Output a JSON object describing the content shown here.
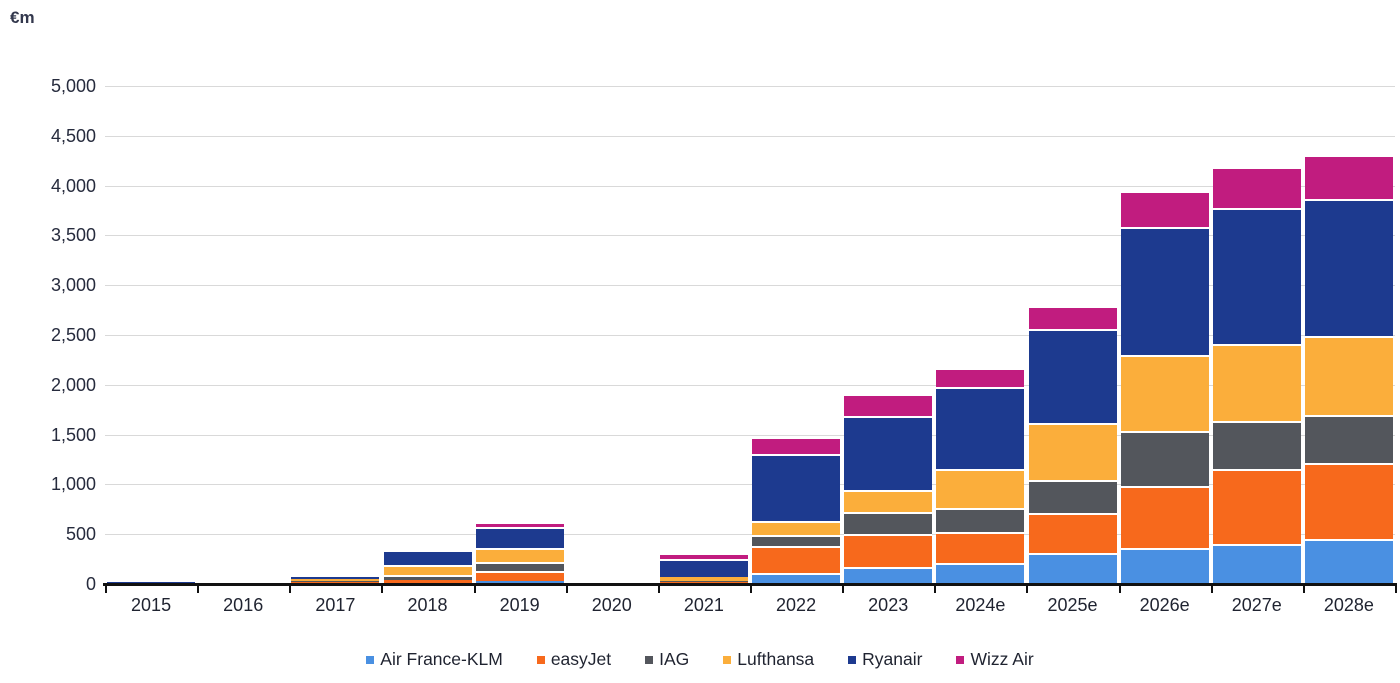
{
  "chart_data": {
    "type": "bar",
    "stacked": true,
    "title": "€m",
    "categories": [
      "2015",
      "2016",
      "2017",
      "2018",
      "2019",
      "2020",
      "2021",
      "2022",
      "2023",
      "2024e",
      "2025e",
      "2026e",
      "2027e",
      "2028e"
    ],
    "series": [
      {
        "name": "Air France-KLM",
        "color": "#4a90e2",
        "values": [
          5,
          0,
          10,
          0,
          30,
          0,
          15,
          110,
          175,
          215,
          310,
          360,
          400,
          450
        ]
      },
      {
        "name": "easyJet",
        "color": "#f7691c",
        "values": [
          5,
          0,
          15,
          40,
          105,
          0,
          10,
          275,
          330,
          305,
          405,
          620,
          750,
          770
        ]
      },
      {
        "name": "IAG",
        "color": "#53565c",
        "values": [
          0,
          0,
          10,
          55,
          85,
          0,
          10,
          110,
          220,
          245,
          325,
          555,
          490,
          480
        ]
      },
      {
        "name": "Lufthansa",
        "color": "#fbae3b",
        "values": [
          5,
          0,
          15,
          95,
          140,
          0,
          35,
          135,
          220,
          390,
          580,
          765,
          775,
          790
        ]
      },
      {
        "name": "Ryanair",
        "color": "#1d3a8f",
        "values": [
          10,
          0,
          20,
          155,
          210,
          0,
          185,
          675,
          740,
          820,
          940,
          1280,
          1360,
          1380
        ]
      },
      {
        "name": "Wizz Air",
        "color": "#c11c7f",
        "values": [
          0,
          0,
          0,
          0,
          55,
          0,
          40,
          170,
          220,
          190,
          235,
          370,
          415,
          440
        ]
      }
    ],
    "totals": [
      25,
      0,
      70,
      345,
      625,
      0,
      295,
      1475,
      1905,
      2165,
      2795,
      3950,
      4190,
      4310
    ],
    "ylim": [
      0,
      5000
    ],
    "ytick_step": 500,
    "ytick_labels": [
      "0",
      "500",
      "1,000",
      "1,500",
      "2,000",
      "2,500",
      "3,000",
      "3,500",
      "4,000",
      "4,500",
      "5,000"
    ],
    "grid": true,
    "legend_position": "bottom",
    "gridline_color": "#d9d9d9",
    "axis_color": "#111111"
  }
}
